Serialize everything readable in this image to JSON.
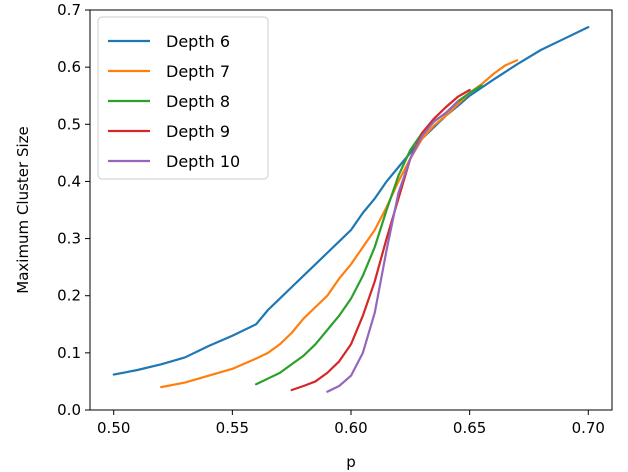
{
  "chart_data": {
    "type": "line",
    "title": "",
    "xlabel": "p",
    "ylabel": "Maximum Cluster Size",
    "xlim": [
      0.49,
      0.71
    ],
    "ylim": [
      0.0,
      0.7
    ],
    "xticks": [
      "0.50",
      "0.55",
      "0.60",
      "0.65",
      "0.70"
    ],
    "yticks": [
      "0.0",
      "0.1",
      "0.2",
      "0.3",
      "0.4",
      "0.5",
      "0.6",
      "0.7"
    ],
    "grid": false,
    "legend_position": "upper-left",
    "series": [
      {
        "name": "Depth 6",
        "color": "#1f77b4",
        "x": [
          0.5,
          0.51,
          0.52,
          0.53,
          0.54,
          0.55,
          0.56,
          0.565,
          0.57,
          0.575,
          0.58,
          0.585,
          0.59,
          0.595,
          0.6,
          0.605,
          0.61,
          0.615,
          0.62,
          0.625,
          0.63,
          0.635,
          0.64,
          0.645,
          0.65,
          0.66,
          0.67,
          0.68,
          0.69,
          0.7
        ],
        "y": [
          0.062,
          0.07,
          0.08,
          0.092,
          0.112,
          0.13,
          0.15,
          0.175,
          0.195,
          0.215,
          0.235,
          0.255,
          0.275,
          0.295,
          0.315,
          0.345,
          0.37,
          0.4,
          0.425,
          0.45,
          0.475,
          0.495,
          0.515,
          0.532,
          0.55,
          0.578,
          0.605,
          0.63,
          0.65,
          0.67
        ]
      },
      {
        "name": "Depth 7",
        "color": "#ff7f0e",
        "x": [
          0.52,
          0.53,
          0.54,
          0.55,
          0.56,
          0.565,
          0.57,
          0.575,
          0.58,
          0.585,
          0.59,
          0.595,
          0.6,
          0.605,
          0.61,
          0.615,
          0.62,
          0.625,
          0.63,
          0.635,
          0.64,
          0.645,
          0.65,
          0.655,
          0.66,
          0.665,
          0.67
        ],
        "y": [
          0.04,
          0.048,
          0.06,
          0.072,
          0.09,
          0.1,
          0.115,
          0.135,
          0.16,
          0.18,
          0.2,
          0.23,
          0.255,
          0.285,
          0.315,
          0.355,
          0.4,
          0.44,
          0.475,
          0.498,
          0.515,
          0.535,
          0.555,
          0.57,
          0.588,
          0.603,
          0.612
        ]
      },
      {
        "name": "Depth 8",
        "color": "#2ca02c",
        "x": [
          0.56,
          0.565,
          0.57,
          0.575,
          0.58,
          0.585,
          0.59,
          0.595,
          0.6,
          0.605,
          0.61,
          0.615,
          0.62,
          0.625,
          0.63,
          0.635,
          0.64,
          0.645,
          0.65,
          0.655
        ],
        "y": [
          0.045,
          0.055,
          0.065,
          0.08,
          0.095,
          0.115,
          0.14,
          0.165,
          0.195,
          0.235,
          0.285,
          0.35,
          0.41,
          0.455,
          0.485,
          0.505,
          0.52,
          0.54,
          0.555,
          0.568
        ]
      },
      {
        "name": "Depth 9",
        "color": "#d62728",
        "x": [
          0.575,
          0.58,
          0.585,
          0.59,
          0.595,
          0.6,
          0.605,
          0.61,
          0.615,
          0.62,
          0.625,
          0.63,
          0.635,
          0.64,
          0.645,
          0.65
        ],
        "y": [
          0.035,
          0.042,
          0.05,
          0.065,
          0.085,
          0.115,
          0.165,
          0.225,
          0.3,
          0.37,
          0.44,
          0.485,
          0.51,
          0.53,
          0.548,
          0.56
        ]
      },
      {
        "name": "Depth 10",
        "color": "#9467bd",
        "x": [
          0.59,
          0.595,
          0.6,
          0.605,
          0.61,
          0.615,
          0.62,
          0.625,
          0.63,
          0.635,
          0.64,
          0.645
        ],
        "y": [
          0.032,
          0.042,
          0.06,
          0.1,
          0.17,
          0.28,
          0.38,
          0.44,
          0.48,
          0.505,
          0.52,
          0.54
        ]
      }
    ]
  }
}
